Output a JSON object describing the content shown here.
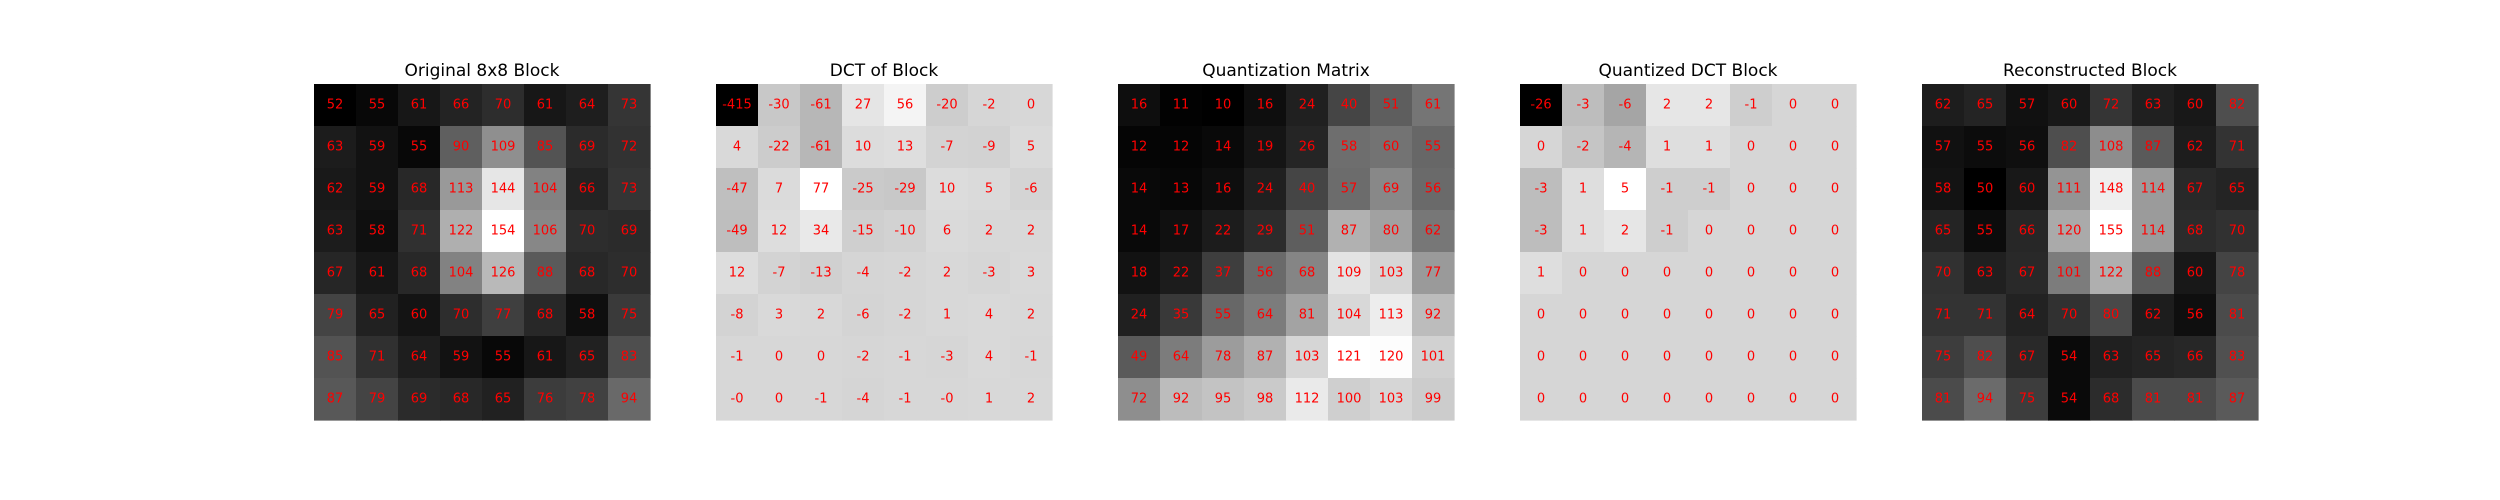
{
  "figure": {
    "label_color": "#ff0000",
    "colormap": "gray"
  },
  "chart_data": [
    {
      "type": "heatmap",
      "title": "Original 8x8 Block",
      "values": [
        [
          52,
          55,
          61,
          66,
          70,
          61,
          64,
          73
        ],
        [
          63,
          59,
          55,
          90,
          109,
          85,
          69,
          72
        ],
        [
          62,
          59,
          68,
          113,
          144,
          104,
          66,
          73
        ],
        [
          63,
          58,
          71,
          122,
          154,
          106,
          70,
          69
        ],
        [
          67,
          61,
          68,
          104,
          126,
          88,
          68,
          70
        ],
        [
          79,
          65,
          60,
          70,
          77,
          68,
          58,
          75
        ],
        [
          85,
          71,
          64,
          59,
          55,
          61,
          65,
          83
        ],
        [
          87,
          79,
          69,
          68,
          65,
          76,
          78,
          94
        ]
      ]
    },
    {
      "type": "heatmap",
      "title": "DCT of Block",
      "values": [
        [
          "-415",
          "-30",
          "-61",
          "27",
          "56",
          "-20",
          "-2",
          "0"
        ],
        [
          "4",
          "-22",
          "-61",
          "10",
          "13",
          "-7",
          "-9",
          "5"
        ],
        [
          "-47",
          "7",
          "77",
          "-25",
          "-29",
          "10",
          "5",
          "-6"
        ],
        [
          "-49",
          "12",
          "34",
          "-15",
          "-10",
          "6",
          "2",
          "2"
        ],
        [
          "12",
          "-7",
          "-13",
          "-4",
          "-2",
          "2",
          "-3",
          "3"
        ],
        [
          "-8",
          "3",
          "2",
          "-6",
          "-2",
          "1",
          "4",
          "2"
        ],
        [
          "-1",
          "0",
          "0",
          "-2",
          "-1",
          "-3",
          "4",
          "-1"
        ],
        [
          "-0",
          "0",
          "-1",
          "-4",
          "-1",
          "-0",
          "1",
          "2"
        ]
      ]
    },
    {
      "type": "heatmap",
      "title": "Quantization Matrix",
      "values": [
        [
          16,
          11,
          10,
          16,
          24,
          40,
          51,
          61
        ],
        [
          12,
          12,
          14,
          19,
          26,
          58,
          60,
          55
        ],
        [
          14,
          13,
          16,
          24,
          40,
          57,
          69,
          56
        ],
        [
          14,
          17,
          22,
          29,
          51,
          87,
          80,
          62
        ],
        [
          18,
          22,
          37,
          56,
          68,
          109,
          103,
          77
        ],
        [
          24,
          35,
          55,
          64,
          81,
          104,
          113,
          92
        ],
        [
          49,
          64,
          78,
          87,
          103,
          121,
          120,
          101
        ],
        [
          72,
          92,
          95,
          98,
          112,
          100,
          103,
          99
        ]
      ]
    },
    {
      "type": "heatmap",
      "title": "Quantized DCT Block",
      "values": [
        [
          -26,
          -3,
          -6,
          2,
          2,
          -1,
          0,
          0
        ],
        [
          0,
          -2,
          -4,
          1,
          1,
          0,
          0,
          0
        ],
        [
          -3,
          1,
          5,
          -1,
          -1,
          0,
          0,
          0
        ],
        [
          -3,
          1,
          2,
          -1,
          0,
          0,
          0,
          0
        ],
        [
          1,
          0,
          0,
          0,
          0,
          0,
          0,
          0
        ],
        [
          0,
          0,
          0,
          0,
          0,
          0,
          0,
          0
        ],
        [
          0,
          0,
          0,
          0,
          0,
          0,
          0,
          0
        ],
        [
          0,
          0,
          0,
          0,
          0,
          0,
          0,
          0
        ]
      ]
    },
    {
      "type": "heatmap",
      "title": "Reconstructed Block",
      "values": [
        [
          62,
          65,
          57,
          60,
          72,
          63,
          60,
          82
        ],
        [
          57,
          55,
          56,
          82,
          108,
          87,
          62,
          71
        ],
        [
          58,
          50,
          60,
          111,
          148,
          114,
          67,
          65
        ],
        [
          65,
          55,
          66,
          120,
          155,
          114,
          68,
          70
        ],
        [
          70,
          63,
          67,
          101,
          122,
          88,
          60,
          78
        ],
        [
          71,
          71,
          64,
          70,
          80,
          62,
          56,
          81
        ],
        [
          75,
          82,
          67,
          54,
          63,
          65,
          66,
          83
        ],
        [
          81,
          94,
          75,
          54,
          68,
          81,
          81,
          87
        ]
      ]
    }
  ]
}
